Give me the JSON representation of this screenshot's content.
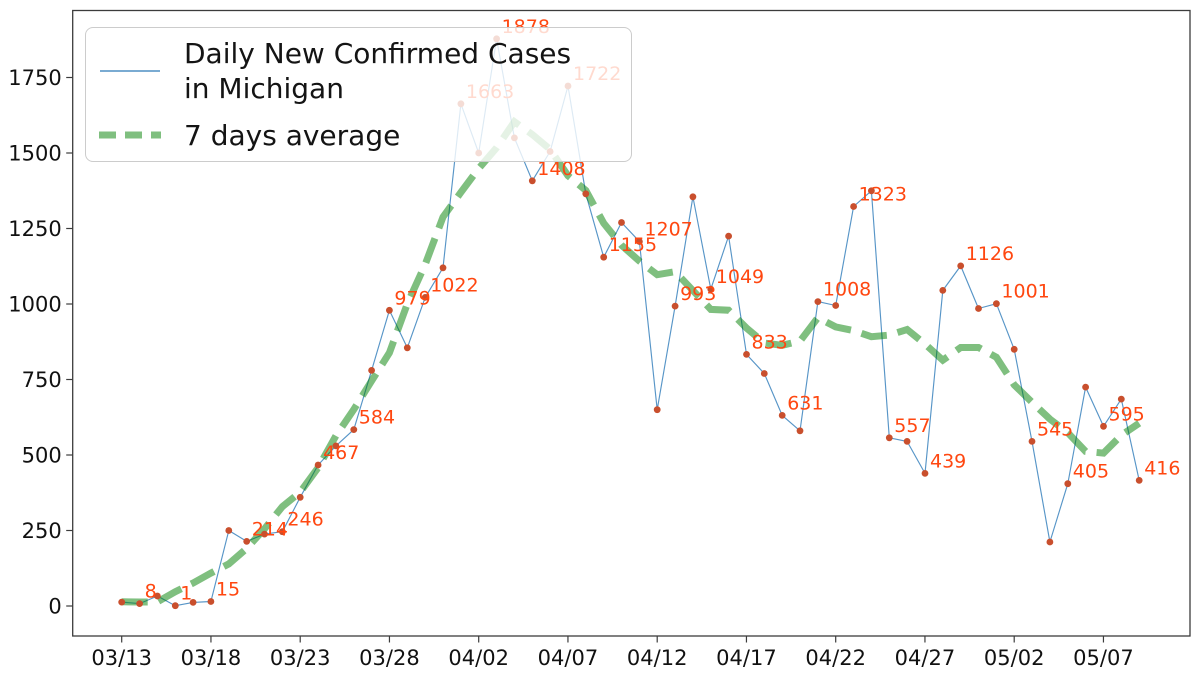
{
  "chart_data": {
    "type": "line",
    "x_dates": [
      "03/13",
      "03/14",
      "03/15",
      "03/16",
      "03/17",
      "03/18",
      "03/19",
      "03/20",
      "03/21",
      "03/22",
      "03/23",
      "03/24",
      "03/25",
      "03/26",
      "03/27",
      "03/28",
      "03/29",
      "03/30",
      "03/31",
      "04/01",
      "04/02",
      "04/03",
      "04/04",
      "04/05",
      "04/06",
      "04/07",
      "04/08",
      "04/09",
      "04/10",
      "04/11",
      "04/12",
      "04/13",
      "04/14",
      "04/15",
      "04/16",
      "04/17",
      "04/18",
      "04/19",
      "04/20",
      "04/21",
      "04/22",
      "04/23",
      "04/24",
      "04/25",
      "04/26",
      "04/27",
      "04/28",
      "04/29",
      "04/30",
      "05/01",
      "05/02",
      "05/03",
      "05/04",
      "05/05",
      "05/06",
      "05/07",
      "05/08",
      "05/09"
    ],
    "series": [
      {
        "name": "Daily New Confirmed Cases\n in Michigan",
        "values": [
          13,
          8,
          33,
          1,
          12,
          15,
          250,
          214,
          238,
          246,
          360,
          467,
          530,
          584,
          780,
          979,
          855,
          1022,
          1120,
          1663,
          1500,
          1878,
          1550,
          1408,
          1505,
          1722,
          1365,
          1155,
          1270,
          1207,
          650,
          993,
          1355,
          1049,
          1225,
          833,
          770,
          631,
          580,
          1008,
          995,
          1323,
          1375,
          557,
          545,
          439,
          1045,
          1126,
          985,
          1001,
          850,
          545,
          212,
          405,
          725,
          595,
          685,
          416
        ]
      },
      {
        "name": "7 days average",
        "derived_from_series": 0,
        "window": 7,
        "centered": true
      }
    ],
    "annotations": [
      {
        "index": 1,
        "text": "8"
      },
      {
        "index": 3,
        "text": "1"
      },
      {
        "index": 5,
        "text": "15"
      },
      {
        "index": 7,
        "text": "214"
      },
      {
        "index": 9,
        "text": "246"
      },
      {
        "index": 11,
        "text": "467"
      },
      {
        "index": 13,
        "text": "584"
      },
      {
        "index": 15,
        "text": "979"
      },
      {
        "index": 17,
        "text": "1022"
      },
      {
        "index": 19,
        "text": "1663"
      },
      {
        "index": 21,
        "text": "1878"
      },
      {
        "index": 23,
        "text": "1408"
      },
      {
        "index": 25,
        "text": "1722"
      },
      {
        "index": 27,
        "text": "1155"
      },
      {
        "index": 29,
        "text": "1207"
      },
      {
        "index": 31,
        "text": "993"
      },
      {
        "index": 33,
        "text": "1049"
      },
      {
        "index": 35,
        "text": "833"
      },
      {
        "index": 37,
        "text": "631"
      },
      {
        "index": 39,
        "text": "1008"
      },
      {
        "index": 41,
        "text": "1323"
      },
      {
        "index": 43,
        "text": "557"
      },
      {
        "index": 45,
        "text": "439"
      },
      {
        "index": 47,
        "text": "1126"
      },
      {
        "index": 49,
        "text": "1001"
      },
      {
        "index": 51,
        "text": "545"
      },
      {
        "index": 53,
        "text": "405"
      },
      {
        "index": 55,
        "text": "595"
      },
      {
        "index": 57,
        "text": "416"
      }
    ],
    "x_tick_labels": [
      "03/13",
      "03/18",
      "03/23",
      "03/28",
      "04/02",
      "04/07",
      "04/12",
      "04/17",
      "04/22",
      "04/27",
      "05/02",
      "05/07"
    ],
    "x_tick_step": 5,
    "y_ticks": [
      0,
      250,
      500,
      750,
      1000,
      1250,
      1500,
      1750
    ],
    "legend_position": "upper-left",
    "grid": false,
    "colors": {
      "daily_line": "#4e8fc4",
      "marker": "#c94f2d",
      "annotation": "#ff4710",
      "average_line": "#008000",
      "average_opacity": 0.5,
      "axis": "#3c3c3c",
      "tick_text": "#111111"
    }
  }
}
